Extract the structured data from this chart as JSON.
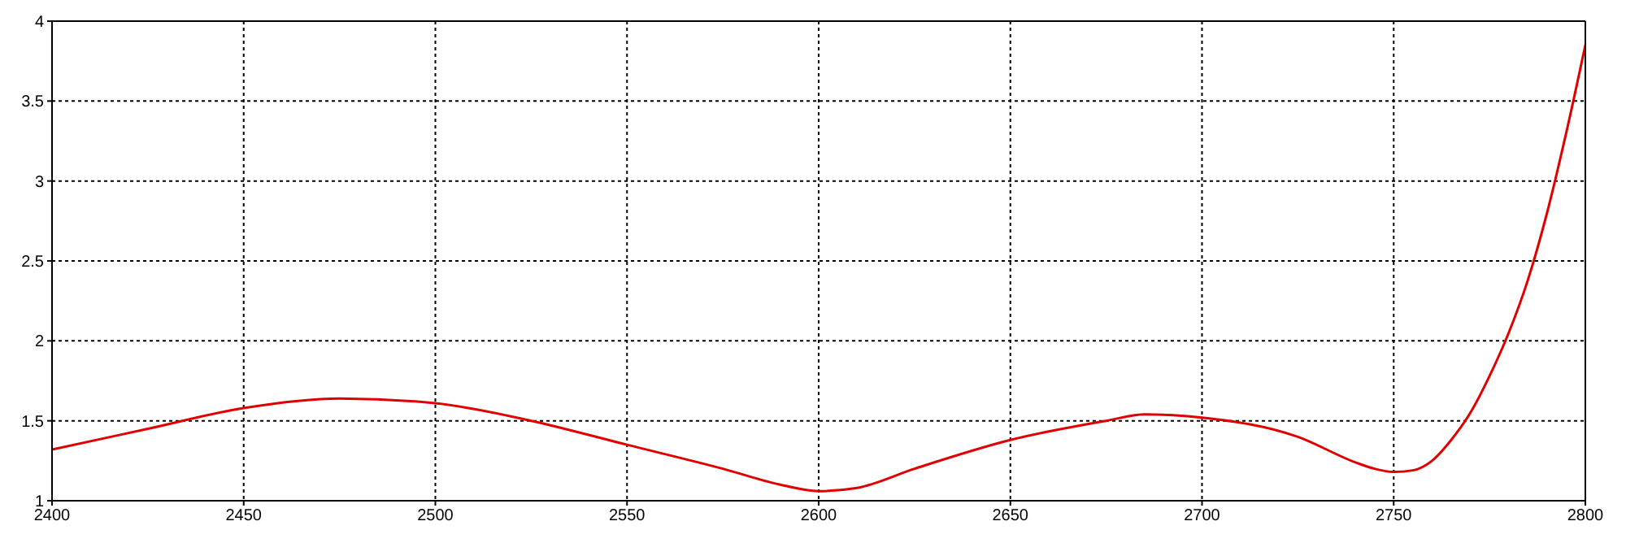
{
  "chart_data": {
    "type": "line",
    "xlim": [
      2400,
      2800
    ],
    "ylim": [
      1,
      4
    ],
    "xticks": [
      2400,
      2450,
      2500,
      2550,
      2600,
      2650,
      2700,
      2750,
      2800
    ],
    "yticks": [
      1,
      {
        "value": 1.5,
        "label": "1.5"
      },
      2,
      {
        "value": 2.5,
        "label": "2.5"
      },
      3,
      {
        "value": 3.5,
        "label": "3.5"
      },
      4
    ],
    "grid": true,
    "line_style": "solid",
    "marker": "none",
    "x": [
      2400,
      2425,
      2450,
      2475,
      2500,
      2525,
      2550,
      2575,
      2590,
      2600,
      2610,
      2625,
      2650,
      2675,
      2685,
      2700,
      2725,
      2740,
      2745,
      2750,
      2755,
      2760,
      2765,
      2770,
      2775,
      2780,
      2785,
      2790,
      2795,
      2800
    ],
    "series": [
      {
        "color": "#e00000",
        "values": [
          1.32,
          1.45,
          1.58,
          1.64,
          1.61,
          1.5,
          1.35,
          1.2,
          1.1,
          1.06,
          1.08,
          1.2,
          1.38,
          1.5,
          1.54,
          1.52,
          1.4,
          1.24,
          1.2,
          1.18,
          1.19,
          1.25,
          1.38,
          1.55,
          1.78,
          2.05,
          2.38,
          2.8,
          3.3,
          3.85
        ]
      }
    ]
  }
}
